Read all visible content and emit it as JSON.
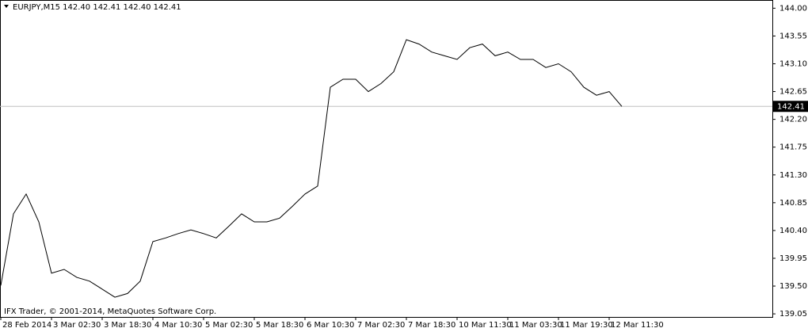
{
  "chart_data": {
    "type": "line",
    "title": "EURJPY,M15  142.40 142.41 142.40 142.41",
    "annotation": "IFX Trader, © 2001-2014, MetaQuotes Software Corp.",
    "categories": [
      "28 Feb 2014",
      null,
      null,
      null,
      "3 Mar 02:30",
      null,
      null,
      null,
      "3 Mar 18:30",
      null,
      null,
      null,
      "4 Mar 10:30",
      null,
      null,
      null,
      "5 Mar 02:30",
      null,
      null,
      null,
      "5 Mar 18:30",
      null,
      null,
      null,
      "6 Mar 10:30",
      null,
      null,
      null,
      "7 Mar 02:30",
      null,
      null,
      null,
      "7 Mar 18:30",
      null,
      null,
      null,
      "10 Mar 11:30",
      null,
      null,
      null,
      "11 Mar 03:30",
      null,
      null,
      null,
      "11 Mar 19:30",
      null,
      null,
      null,
      "12 Mar 11:30",
      null
    ],
    "series": [
      {
        "name": "EURJPY",
        "color": "#000000",
        "values": [
          139.51,
          140.67,
          140.99,
          140.54,
          139.71,
          139.77,
          139.64,
          139.58,
          139.45,
          139.32,
          139.38,
          139.58,
          140.22,
          140.28,
          140.35,
          140.41,
          140.35,
          140.28,
          140.47,
          140.67,
          140.54,
          140.54,
          140.6,
          140.79,
          140.99,
          141.12,
          142.72,
          142.85,
          142.85,
          142.65,
          142.78,
          142.97,
          143.49,
          143.42,
          143.29,
          143.23,
          143.17,
          143.36,
          143.42,
          143.23,
          143.29,
          143.17,
          143.17,
          143.04,
          143.1,
          142.97,
          142.72,
          142.59,
          142.65,
          142.41
        ]
      }
    ],
    "current_price": 142.41,
    "ylim": [
      139.0,
      144.12
    ],
    "yticks": [
      {
        "value": 144,
        "label": "144.00"
      },
      143.55,
      {
        "value": 143.1,
        "label": "143.10"
      },
      142.65,
      {
        "value": 142.2,
        "label": "142.20"
      },
      141.75,
      {
        "value": 141.3,
        "label": "141.30"
      },
      140.85,
      {
        "value": 140.4,
        "label": "140.40"
      },
      139.95,
      {
        "value": 139.5,
        "label": "139.50"
      },
      139.05
    ]
  }
}
